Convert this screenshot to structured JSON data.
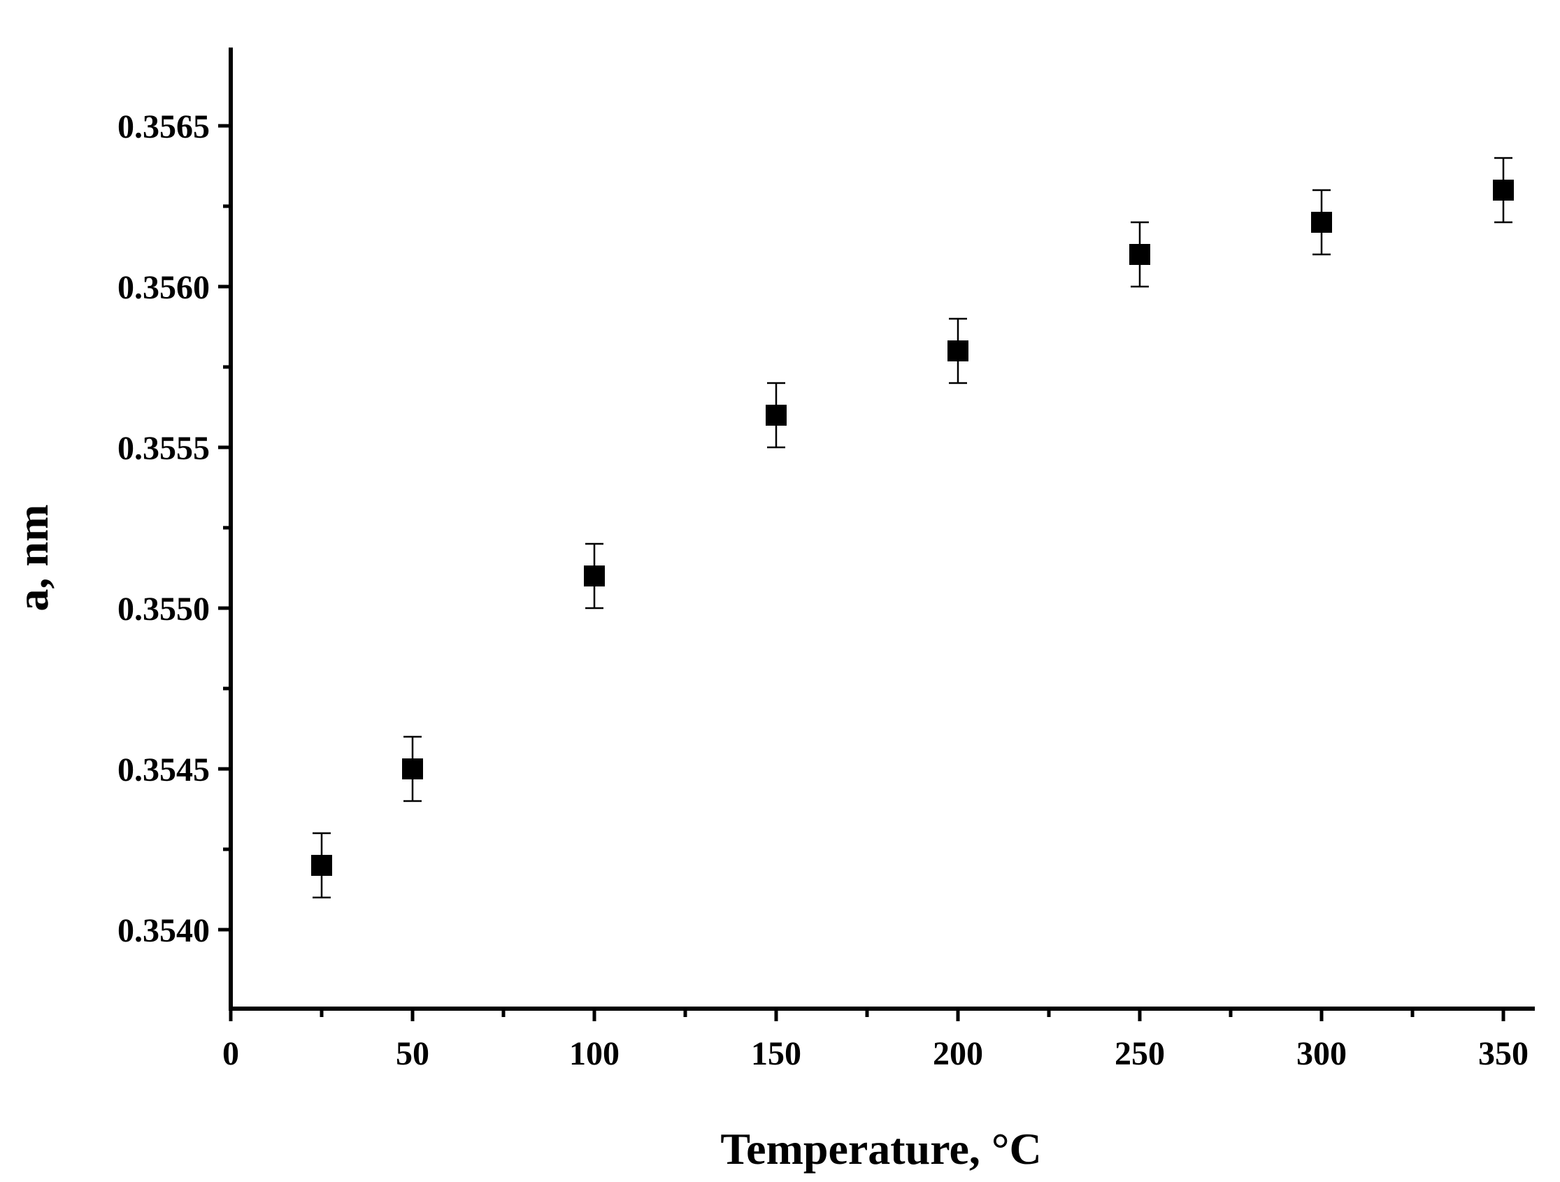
{
  "chart_data": {
    "type": "scatter",
    "xlabel": "Temperature, °C",
    "ylabel": "a, nm",
    "xlim": [
      0,
      360
    ],
    "ylim": [
      0.35377,
      0.35673
    ],
    "x_ticks": [
      0,
      50,
      100,
      150,
      200,
      250,
      300,
      350
    ],
    "x_tick_labels": [
      "0",
      "50",
      "100",
      "150",
      "200",
      "250",
      "300",
      "350"
    ],
    "y_ticks": [
      0.354,
      0.3545,
      0.355,
      0.3555,
      0.356,
      0.3565
    ],
    "y_tick_labels": [
      "0.3540",
      "0.3545",
      "0.3550",
      "0.3555",
      "0.3560",
      "0.3565"
    ],
    "grid": false,
    "marker": "square",
    "series": [
      {
        "color": "#000000",
        "x": [
          25,
          50,
          100,
          150,
          200,
          250,
          300,
          350
        ],
        "y": [
          0.3542,
          0.3545,
          0.3551,
          0.3556,
          0.3558,
          0.3561,
          0.3562,
          0.3563
        ],
        "error": [
          0.0001,
          0.0001,
          0.0001,
          0.0001,
          0.0001,
          0.0001,
          0.0001,
          0.0001
        ]
      }
    ]
  }
}
